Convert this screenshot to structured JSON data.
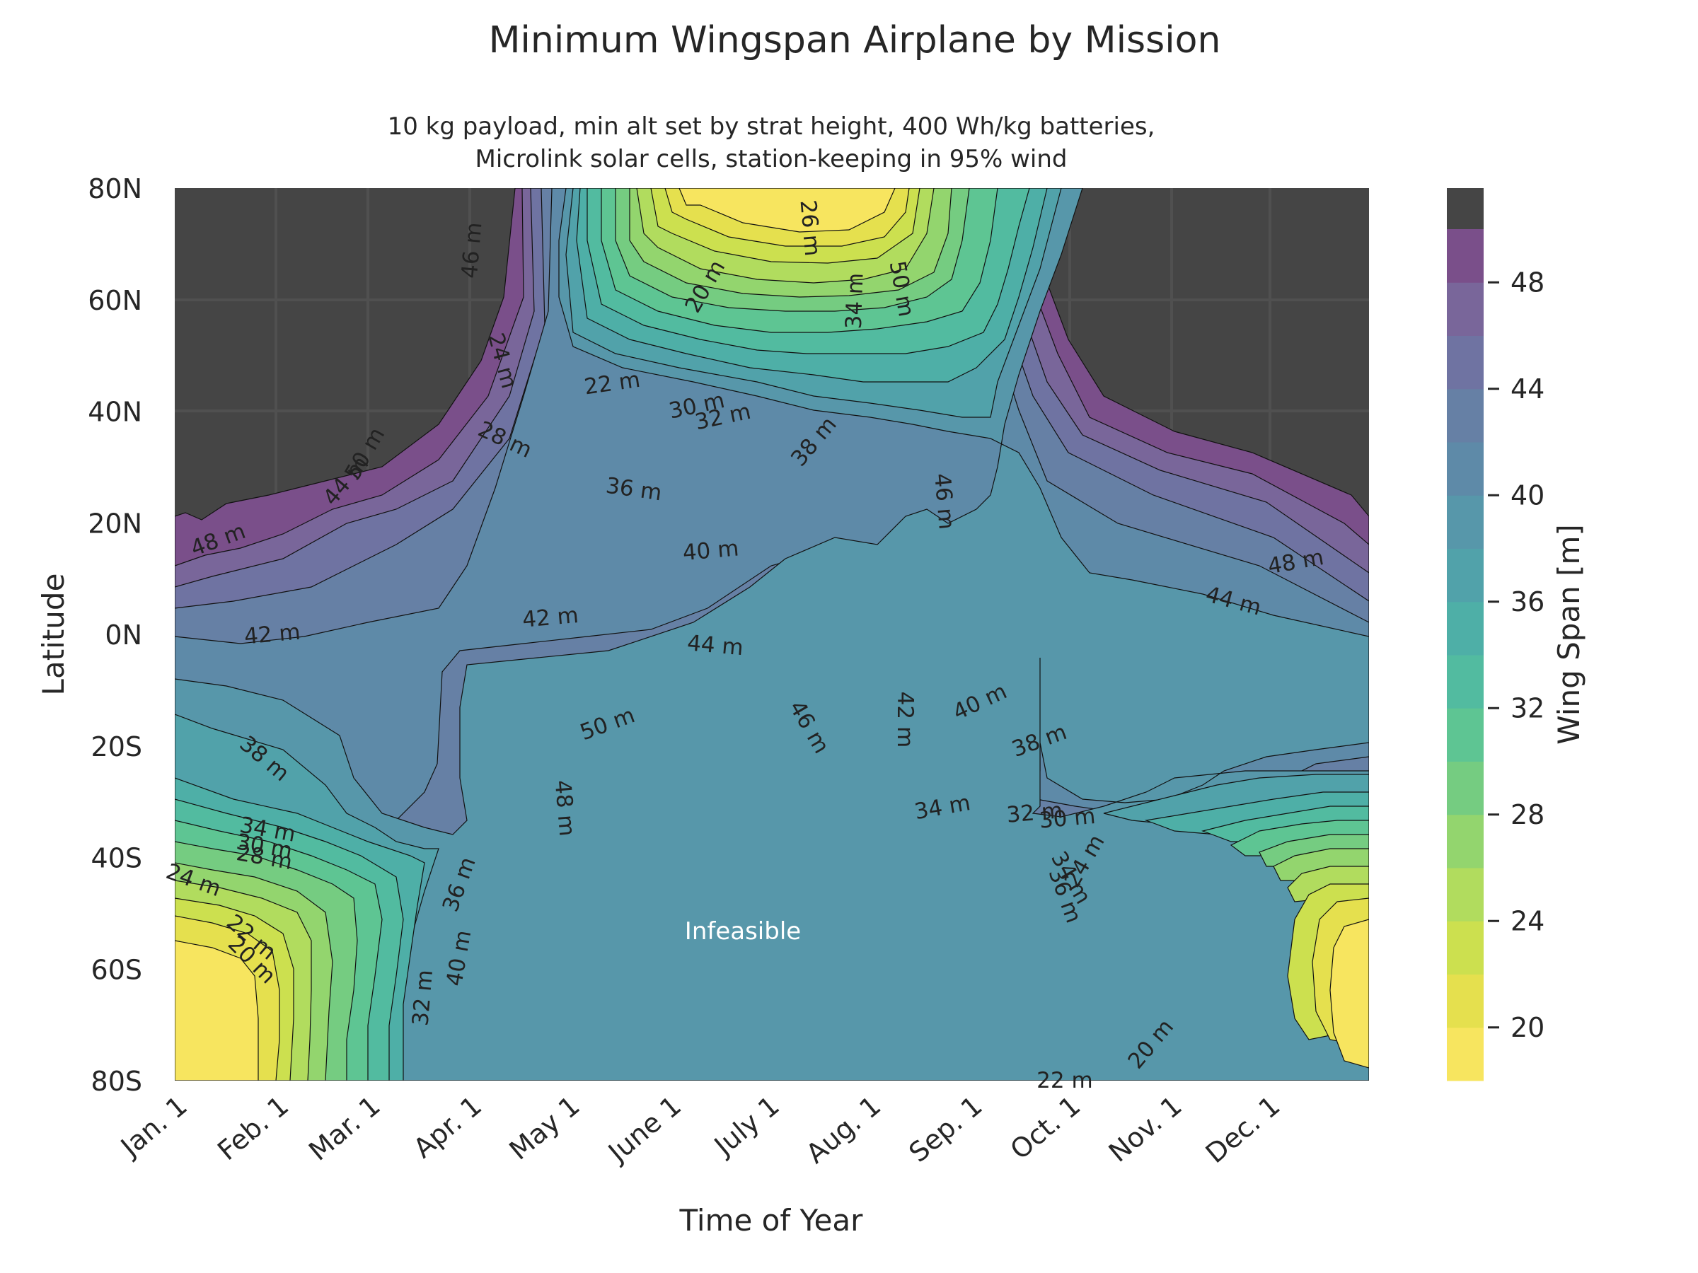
{
  "chart_data": {
    "type": "filled-contour",
    "title": "Minimum Wingspan Airplane by Mission",
    "subtitle_lines": [
      "10 kg payload, min alt set by strat height, 400 Wh/kg batteries,",
      "Microlink solar cells, station-keeping in 95% wind"
    ],
    "xlabel": "Time of Year",
    "ylabel": "Latitude",
    "x_ticks": [
      "Jan. 1",
      "Feb. 1",
      "Mar. 1",
      "Apr. 1",
      "May 1",
      "June 1",
      "July 1",
      "Aug. 1",
      "Sep. 1",
      "Oct. 1",
      "Nov. 1",
      "Dec. 1"
    ],
    "x_tick_days": [
      0,
      31,
      59,
      90,
      120,
      151,
      181,
      212,
      243,
      273,
      304,
      334
    ],
    "xlim": [
      0,
      365
    ],
    "y_ticks": [
      "80N",
      "60N",
      "40N",
      "20N",
      "0N",
      "20S",
      "40S",
      "60S",
      "80S"
    ],
    "y_tick_values": [
      80,
      60,
      40,
      20,
      0,
      -20,
      -40,
      -60,
      -80
    ],
    "ylim": [
      -80,
      80
    ],
    "colorbar_label": "Wing Span [m]",
    "colorbar_ticks": [
      "20",
      "24",
      "28",
      "32",
      "36",
      "40",
      "44",
      "48"
    ],
    "colorbar_tick_values": [
      20,
      24,
      28,
      32,
      36,
      40,
      44,
      48
    ],
    "levels": [
      18,
      20,
      22,
      24,
      26,
      28,
      30,
      32,
      34,
      36,
      38,
      40,
      42,
      44,
      46,
      48,
      50
    ],
    "level_colors": [
      "#f7e55f",
      "#e5e04e",
      "#cce04f",
      "#b1dc5e",
      "#93d56e",
      "#75cc81",
      "#5ec593",
      "#52bba0",
      "#4eafa7",
      "#51a2aa",
      "#5797aa",
      "#5e8aa8",
      "#6680a5",
      "#6f73a2",
      "#79669a",
      "#7a4f8a"
    ],
    "infeasible_color": "#454545",
    "infeasible_label": "Infeasible",
    "contour_labels": [
      {
        "text": "46 m",
        "day": 93,
        "lat": 70,
        "rot": -85
      },
      {
        "text": "20 m",
        "day": 164,
        "lat": 63,
        "rot": -60
      },
      {
        "text": "26 m",
        "day": 192,
        "lat": 74,
        "rot": 85
      },
      {
        "text": "34 m",
        "day": 210,
        "lat": 61,
        "rot": -88
      },
      {
        "text": "50 m",
        "day": 220,
        "lat": 63,
        "rot": 80
      },
      {
        "text": "24 m",
        "day": 98,
        "lat": 50,
        "rot": 75
      },
      {
        "text": "22 m",
        "day": 134,
        "lat": 45,
        "rot": -8
      },
      {
        "text": "30 m",
        "day": 160,
        "lat": 41,
        "rot": -12
      },
      {
        "text": "32 m",
        "day": 168,
        "lat": 39,
        "rot": -12
      },
      {
        "text": "28 m",
        "day": 100,
        "lat": 35,
        "rot": 25
      },
      {
        "text": "50 m",
        "day": 60,
        "lat": 33,
        "rot": -60
      },
      {
        "text": "44 m",
        "day": 54,
        "lat": 28,
        "rot": -50
      },
      {
        "text": "38 m",
        "day": 197,
        "lat": 35,
        "rot": -50
      },
      {
        "text": "36 m",
        "day": 140,
        "lat": 26,
        "rot": 8
      },
      {
        "text": "46 m",
        "day": 233,
        "lat": 25,
        "rot": 85
      },
      {
        "text": "48 m",
        "day": 14,
        "lat": 17,
        "rot": -20
      },
      {
        "text": "48 m",
        "day": 343,
        "lat": 13,
        "rot": -10
      },
      {
        "text": "40 m",
        "day": 164,
        "lat": 15,
        "rot": -5
      },
      {
        "text": "44 m",
        "day": 323,
        "lat": 6,
        "rot": 15
      },
      {
        "text": "42 m",
        "day": 30,
        "lat": 0,
        "rot": -5
      },
      {
        "text": "42 m",
        "day": 115,
        "lat": 3,
        "rot": -5
      },
      {
        "text": "44 m",
        "day": 165,
        "lat": -2,
        "rot": 5
      },
      {
        "text": "50 m",
        "day": 133,
        "lat": -16,
        "rot": -20
      },
      {
        "text": "46 m",
        "day": 192,
        "lat": -16,
        "rot": 60
      },
      {
        "text": "42 m",
        "day": 221,
        "lat": -14,
        "rot": 90
      },
      {
        "text": "40 m",
        "day": 247,
        "lat": -12,
        "rot": -25
      },
      {
        "text": "38 m",
        "day": 26,
        "lat": -22,
        "rot": 40
      },
      {
        "text": "38 m",
        "day": 265,
        "lat": -19,
        "rot": -20
      },
      {
        "text": "48 m",
        "day": 117,
        "lat": -30,
        "rot": 85
      },
      {
        "text": "34 m",
        "day": 235,
        "lat": -31,
        "rot": -10
      },
      {
        "text": "32 m",
        "day": 263,
        "lat": -32,
        "rot": -5
      },
      {
        "text": "30 m",
        "day": 273,
        "lat": -33,
        "rot": -5
      },
      {
        "text": "34 m",
        "day": 28,
        "lat": -35,
        "rot": 10
      },
      {
        "text": "30 m",
        "day": 27,
        "lat": -38,
        "rot": 10
      },
      {
        "text": "28 m",
        "day": 27,
        "lat": -40,
        "rot": 10
      },
      {
        "text": "24 m",
        "day": 5,
        "lat": -44,
        "rot": 20
      },
      {
        "text": "36 m",
        "day": 89,
        "lat": -44,
        "rot": -70
      },
      {
        "text": "22 m",
        "day": 22,
        "lat": -54,
        "rot": 40
      },
      {
        "text": "20 m",
        "day": 22,
        "lat": -58,
        "rot": 45
      },
      {
        "text": "40 m",
        "day": 89,
        "lat": -57,
        "rot": -80
      },
      {
        "text": "32 m",
        "day": 78,
        "lat": -64,
        "rot": -85
      },
      {
        "text": "34 m",
        "day": 272,
        "lat": -43,
        "rot": 60
      },
      {
        "text": "24 m",
        "day": 280,
        "lat": -40,
        "rot": -60
      },
      {
        "text": "36 m",
        "day": 270,
        "lat": -46,
        "rot": 70
      },
      {
        "text": "20 m",
        "day": 300,
        "lat": -73,
        "rot": -50
      },
      {
        "text": "22 m",
        "day": 272,
        "lat": -80,
        "rot": 0
      }
    ]
  }
}
